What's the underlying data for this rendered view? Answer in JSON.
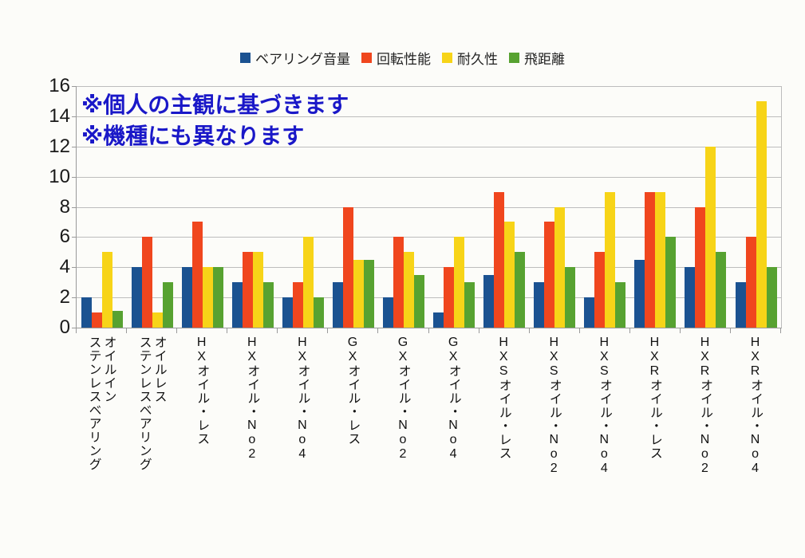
{
  "annotation": {
    "line1": "※個人の主観に基づきます",
    "line2": "※機種にも異なります",
    "color": "#1a18c8"
  },
  "chart_data": {
    "type": "bar",
    "title": "",
    "xlabel": "",
    "ylabel": "",
    "ylim": [
      0,
      16
    ],
    "yticks": [
      0,
      2,
      4,
      6,
      8,
      10,
      12,
      14,
      16
    ],
    "grid": true,
    "legend_position": "top",
    "categories": [
      "オイルイン\nステンレスベアリング",
      "オイルレス\nステンレスベアリング",
      "HXオイル・レス",
      "HXオイル・No2",
      "HXオイル・No4",
      "GXオイル・レス",
      "GXオイル・No2",
      "GXオイル・No4",
      "HXSオイル・レス",
      "HXSオイル・No2",
      "HXSオイル・No4",
      "HXRオイル・レス",
      "HXRオイル・No2",
      "HXRオイル・No4"
    ],
    "series": [
      {
        "name": "ベアリング音量",
        "color": "#1b5291",
        "values": [
          2,
          4,
          4,
          3,
          2,
          3,
          2,
          1,
          3.5,
          3,
          2,
          4.5,
          4,
          3
        ]
      },
      {
        "name": "回転性能",
        "color": "#f0461e",
        "values": [
          1,
          6,
          7,
          5,
          3,
          8,
          6,
          4,
          9,
          7,
          5,
          9,
          8,
          6
        ]
      },
      {
        "name": "耐久性",
        "color": "#f7d418",
        "values": [
          5,
          1,
          4,
          5,
          6,
          4.5,
          5,
          6,
          7,
          8,
          9,
          9,
          12,
          15
        ]
      },
      {
        "name": "飛距離",
        "color": "#57a231",
        "values": [
          1.1,
          3,
          4,
          3,
          2,
          4.5,
          3.5,
          3,
          5,
          4,
          3,
          6,
          5,
          4
        ]
      }
    ]
  }
}
